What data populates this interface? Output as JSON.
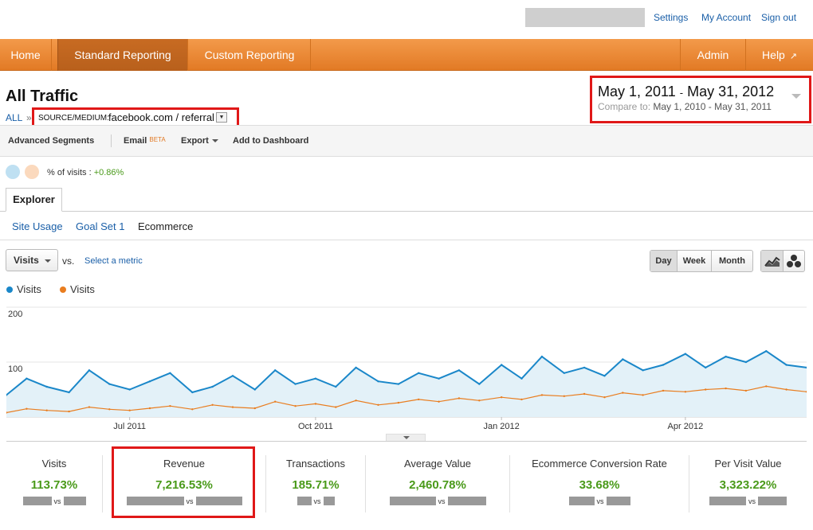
{
  "top_links": {
    "settings": "Settings",
    "my_account": "My Account",
    "sign_out": "Sign out"
  },
  "nav": {
    "home": "Home",
    "standard_reporting": "Standard Reporting",
    "custom_reporting": "Custom Reporting",
    "admin": "Admin",
    "help": "Help"
  },
  "report": {
    "title": "All Traffic",
    "crumb_all": "ALL",
    "crumb_sep": "»",
    "filter_key": "SOURCE/MEDIUM:",
    "filter_value": "facebook.com / referral"
  },
  "date": {
    "start": "May 1, 2011",
    "sep": "-",
    "end": "May 31, 2012",
    "compare_label": "Compare to:",
    "compare_start": "May 1, 2010",
    "compare_end": "May 31, 2011"
  },
  "toolbar": {
    "advanced_segments": "Advanced Segments",
    "email": "Email",
    "email_badge": "BETA",
    "export": "Export",
    "add_to_dashboard": "Add to Dashboard"
  },
  "segment": {
    "label": "% of visits :",
    "value": "+0.86%"
  },
  "tabs": {
    "explorer": "Explorer"
  },
  "subtabs": {
    "site_usage": "Site Usage",
    "goal_set": "Goal Set 1",
    "ecommerce": "Ecommerce"
  },
  "metric": {
    "selected": "Visits",
    "vs": "vs.",
    "select_metric": "Select a metric"
  },
  "granularity": {
    "day": "Day",
    "week": "Week",
    "month": "Month",
    "selected": "Day"
  },
  "legend": [
    {
      "label": "Visits",
      "color": "#1a87c9"
    },
    {
      "label": "Visits",
      "color": "#e97d1f"
    }
  ],
  "colors": {
    "primary_line": "#1a87c9",
    "compare_line": "#e97d1f",
    "area_fill": "#e3f1f8"
  },
  "chart_data": {
    "type": "line",
    "ytick_labels": [
      "200",
      "100"
    ],
    "yticks": [
      200,
      100
    ],
    "ylim": [
      0,
      200
    ],
    "xtick_labels": [
      "Jul 2011",
      "Oct 2011",
      "Jan 2012",
      "Apr 2012"
    ],
    "xtick_dates": [
      "2011-07-01",
      "2011-10-01",
      "2012-01-01",
      "2012-04-01"
    ],
    "xlim": [
      "2011-05-01",
      "2012-05-31"
    ],
    "grid": true,
    "legend_position": "top-left",
    "series": [
      {
        "name": "Visits",
        "color": "#1a87c9",
        "fill": true,
        "x": [
          "2011-05-01",
          "2011-05-11",
          "2011-05-21",
          "2011-06-01",
          "2011-06-11",
          "2011-06-21",
          "2011-07-01",
          "2011-07-11",
          "2011-07-21",
          "2011-08-01",
          "2011-08-11",
          "2011-08-21",
          "2011-09-01",
          "2011-09-11",
          "2011-09-21",
          "2011-10-01",
          "2011-10-11",
          "2011-10-21",
          "2011-11-01",
          "2011-11-11",
          "2011-11-21",
          "2011-12-01",
          "2011-12-11",
          "2011-12-21",
          "2012-01-01",
          "2012-01-11",
          "2012-01-21",
          "2012-02-01",
          "2012-02-11",
          "2012-02-21",
          "2012-03-01",
          "2012-03-11",
          "2012-03-21",
          "2012-04-01",
          "2012-04-11",
          "2012-04-21",
          "2012-05-01",
          "2012-05-11",
          "2012-05-21",
          "2012-05-31"
        ],
        "y": [
          40,
          70,
          55,
          45,
          85,
          60,
          50,
          65,
          80,
          45,
          55,
          75,
          50,
          85,
          60,
          70,
          55,
          90,
          65,
          60,
          80,
          70,
          85,
          60,
          95,
          70,
          110,
          80,
          90,
          75,
          105,
          85,
          95,
          115,
          90,
          110,
          100,
          120,
          95,
          90
        ]
      },
      {
        "name": "Visits",
        "color": "#e97d1f",
        "fill": false,
        "x": [
          "2011-05-01",
          "2011-05-11",
          "2011-05-21",
          "2011-06-01",
          "2011-06-11",
          "2011-06-21",
          "2011-07-01",
          "2011-07-11",
          "2011-07-21",
          "2011-08-01",
          "2011-08-11",
          "2011-08-21",
          "2011-09-01",
          "2011-09-11",
          "2011-09-21",
          "2011-10-01",
          "2011-10-11",
          "2011-10-21",
          "2011-11-01",
          "2011-11-11",
          "2011-11-21",
          "2011-12-01",
          "2011-12-11",
          "2011-12-21",
          "2012-01-01",
          "2012-01-11",
          "2012-01-21",
          "2012-02-01",
          "2012-02-11",
          "2012-02-21",
          "2012-03-01",
          "2012-03-11",
          "2012-03-21",
          "2012-04-01",
          "2012-04-11",
          "2012-04-21",
          "2012-05-01",
          "2012-05-11",
          "2012-05-21",
          "2012-05-31"
        ],
        "y": [
          8,
          15,
          12,
          10,
          18,
          14,
          12,
          16,
          20,
          14,
          22,
          18,
          16,
          28,
          20,
          24,
          18,
          30,
          22,
          26,
          32,
          28,
          34,
          30,
          36,
          32,
          40,
          38,
          42,
          36,
          44,
          40,
          48,
          46,
          50,
          52,
          48,
          56,
          50,
          46
        ]
      }
    ]
  },
  "scorecards": [
    {
      "title": "Visits",
      "value": "113.73%",
      "vs": "vs"
    },
    {
      "title": "Revenue",
      "value": "7,216.53%",
      "vs": "vs"
    },
    {
      "title": "Transactions",
      "value": "185.71%",
      "vs": "vs"
    },
    {
      "title": "Average Value",
      "value": "2,460.78%",
      "vs": "vs"
    },
    {
      "title": "Ecommerce Conversion Rate",
      "value": "33.68%",
      "vs": "vs"
    },
    {
      "title": "Per Visit Value",
      "value": "3,323.22%",
      "vs": "vs"
    }
  ]
}
